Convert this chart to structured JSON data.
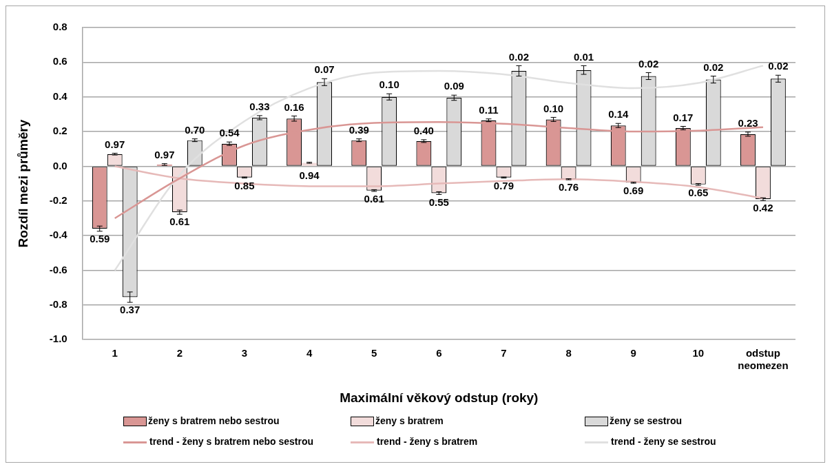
{
  "chart_data": {
    "type": "bar",
    "xlabel": "Maximální věkový odstup (roky)",
    "ylabel": "Rozdíl mezi průměry",
    "categories": [
      "1",
      "2",
      "3",
      "4",
      "5",
      "6",
      "7",
      "8",
      "9",
      "10",
      "odstup neomezen"
    ],
    "ylim": [
      -1,
      0.8
    ],
    "yticks": [
      {
        "value": -1,
        "label": "-1.0"
      },
      -0.8,
      -0.6,
      -0.4,
      -0.2,
      {
        "value": 0,
        "label": "0.0"
      },
      0.2,
      0.4,
      0.6,
      0.8
    ],
    "grid": "y",
    "legend": "bottom",
    "series": [
      {
        "name": "ženy s bratrem nebo sestrou",
        "color": "#d99694",
        "values": [
          -0.36,
          0.01,
          0.13,
          0.275,
          0.15,
          0.145,
          0.265,
          0.27,
          0.235,
          0.22,
          0.185
        ],
        "errors": [
          0.015,
          0.005,
          0.01,
          0.015,
          0.008,
          0.008,
          0.008,
          0.012,
          0.012,
          0.01,
          0.012
        ]
      },
      {
        "name": "ženy s bratrem",
        "color": "#f2dcdb",
        "values": [
          0.07,
          -0.265,
          -0.065,
          0.02,
          -0.14,
          -0.155,
          -0.065,
          -0.075,
          -0.095,
          -0.105,
          -0.19
        ],
        "errors": [
          0.005,
          0.012,
          0.003,
          0.003,
          0.005,
          0.008,
          0.003,
          0.003,
          0.003,
          0.005,
          0.008
        ]
      },
      {
        "name": "ženy se sestrou",
        "color": "#d9d9d9",
        "values": [
          -0.755,
          0.15,
          0.28,
          0.485,
          0.4,
          0.395,
          0.55,
          0.555,
          0.52,
          0.5,
          0.505
        ],
        "errors": [
          0.03,
          0.008,
          0.012,
          0.02,
          0.018,
          0.015,
          0.03,
          0.025,
          0.02,
          0.02,
          0.02
        ]
      },
      {
        "name": "trend - ženy s bratrem nebo sestrou",
        "type": "line",
        "color": "#d99694",
        "values": [
          -0.3,
          -0.07,
          0.12,
          0.21,
          0.25,
          0.255,
          0.245,
          0.22,
          0.2,
          0.205,
          0.225
        ]
      },
      {
        "name": "trend - ženy s bratrem",
        "type": "line",
        "color": "#e6b9b8",
        "values": [
          0,
          -0.07,
          -0.1,
          -0.115,
          -0.115,
          -0.1,
          -0.085,
          -0.075,
          -0.09,
          -0.12,
          -0.185
        ]
      },
      {
        "name": "trend - ženy se sestrou",
        "type": "line",
        "color": "#e0e0e0",
        "values": [
          -0.6,
          -0.05,
          0.26,
          0.45,
          0.54,
          0.55,
          0.53,
          0.48,
          0.45,
          0.48,
          0.58
        ]
      }
    ],
    "annotations": [
      "0.59",
      "0.97",
      "0.37",
      "0.97",
      "0.61",
      "0.70",
      "0.54",
      "0.85",
      "0.33",
      "0.16",
      "0.94",
      "0.07",
      "0.39",
      "0.61",
      "0.10",
      "0.40",
      "0.55",
      "0.09",
      "0.11",
      "0.79",
      "0.02",
      "0.10",
      "0.76",
      "0.01",
      "0.14",
      "0.69",
      "0.02",
      "0.17",
      "0.65",
      "0.02",
      "0.23",
      "0.42",
      "0.02"
    ]
  }
}
